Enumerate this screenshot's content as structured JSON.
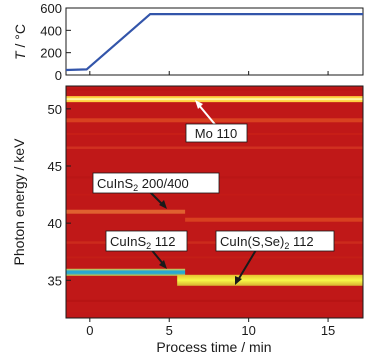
{
  "chart_data": [
    {
      "type": "line",
      "ylabel_symbol": "T",
      "ylabel_unit": " / °C",
      "xlim": [
        -1.5,
        17.2
      ],
      "ylim": [
        0,
        600
      ],
      "yticks": [
        "0",
        "200",
        "400",
        "600"
      ],
      "series": [
        {
          "x": [
            -1.5,
            -0.2,
            3.8,
            17.2
          ],
          "y": [
            45,
            50,
            545,
            545
          ],
          "color": "#3355aa"
        }
      ]
    },
    {
      "type": "heatmap",
      "xlabel": "Process time / min",
      "ylabel": "Photon energy / keV",
      "xlim": [
        -1.5,
        17.2
      ],
      "ylim": [
        31.7,
        52
      ],
      "xticks": [
        "0",
        "5",
        "10",
        "15"
      ],
      "yticks": [
        "35",
        "40",
        "45",
        "50"
      ],
      "background_color": "#c01818",
      "lines": [
        {
          "energy": 50.85,
          "x_start": -1.5,
          "x_end": 17.2,
          "color": "#ffd040"
        },
        {
          "energy": 49.0,
          "x_start": -1.5,
          "x_end": 17.2,
          "color": "#d84020"
        },
        {
          "energy": 46.6,
          "x_start": -1.5,
          "x_end": 17.2,
          "color": "#d03020"
        },
        {
          "energy": 41.0,
          "x_start": -1.5,
          "x_end": 6.0,
          "color": "#e06030"
        },
        {
          "energy": 40.3,
          "x_start": 6.0,
          "x_end": 17.2,
          "color": "#d84020"
        },
        {
          "energy": 38.3,
          "x_start": -1.5,
          "x_end": 17.2,
          "color": "#cc2a1c"
        },
        {
          "energy": 35.7,
          "x_start": -1.5,
          "x_end": 6.0,
          "color": "#40b4a0"
        },
        {
          "energy": 35.0,
          "x_start": 5.5,
          "x_end": 17.2,
          "color": "#e4e840"
        }
      ]
    }
  ],
  "annotations": [
    {
      "label_main": "Mo 110",
      "label_sub": "",
      "label_rest": ""
    },
    {
      "label_main": "CuInS",
      "label_sub": "2",
      "label_rest": " 200/400"
    },
    {
      "label_main": "CuInS",
      "label_sub": "2",
      "label_rest": " 112"
    },
    {
      "label_main": "CuIn(S,Se)",
      "label_sub": "2",
      "label_rest": " 112"
    }
  ]
}
